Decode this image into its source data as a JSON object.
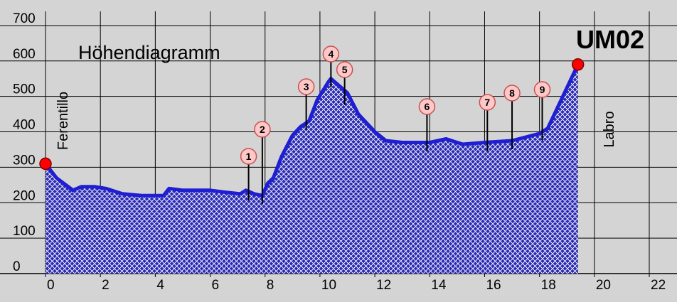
{
  "chart_data": {
    "type": "area",
    "title": "Höhendiagramm",
    "route_code": "UM02",
    "xlim": [
      0,
      22
    ],
    "ylim": [
      0,
      740
    ],
    "x_ticks": [
      0,
      2,
      4,
      6,
      8,
      10,
      12,
      14,
      16,
      18,
      20,
      22
    ],
    "y_ticks": [
      0,
      100,
      200,
      300,
      400,
      500,
      600,
      700
    ],
    "grid": true,
    "colors": {
      "background": "#d4d4d4",
      "line": "#1e1ed2",
      "fill": "#2a2ab4",
      "endpoint": "#ff0000",
      "marker_fill": "#ffc8c8",
      "marker_border": "#c85050"
    },
    "x": [
      0,
      0.4,
      1,
      1.3,
      1.8,
      2.2,
      2.8,
      3.5,
      4.3,
      4.5,
      5.0,
      6.0,
      6.5,
      7.1,
      7.3,
      7.6,
      7.9,
      8.1,
      8.3,
      8.6,
      9.0,
      9.3,
      9.6,
      9.9,
      10.3,
      10.4,
      11.0,
      11.4,
      12.0,
      12.4,
      13.0,
      14.0,
      14.6,
      15.2,
      16.0,
      17.0,
      18.0,
      18.3,
      19.4
    ],
    "elevation": [
      310,
      270,
      235,
      245,
      245,
      240,
      225,
      220,
      220,
      240,
      235,
      235,
      230,
      225,
      235,
      225,
      220,
      255,
      270,
      330,
      390,
      415,
      430,
      490,
      540,
      550,
      510,
      450,
      400,
      375,
      370,
      370,
      380,
      365,
      370,
      375,
      395,
      410,
      590
    ],
    "endpoints": [
      {
        "name": "Ferentillo",
        "x": 0,
        "elevation": 310
      },
      {
        "name": "Labro",
        "x": 19.4,
        "elevation": 590
      }
    ],
    "markers": [
      {
        "label": "1",
        "x": 7.4,
        "elevation": 230
      },
      {
        "label": "2",
        "x": 7.9,
        "elevation": 220
      },
      {
        "label": "3",
        "x": 9.5,
        "elevation": 430
      },
      {
        "label": "4",
        "x": 10.4,
        "elevation": 550
      },
      {
        "label": "5",
        "x": 10.9,
        "elevation": 500
      },
      {
        "label": "6",
        "x": 13.9,
        "elevation": 370
      },
      {
        "label": "7",
        "x": 16.1,
        "elevation": 370
      },
      {
        "label": "8",
        "x": 17.0,
        "elevation": 375
      },
      {
        "label": "9",
        "x": 18.1,
        "elevation": 400
      }
    ]
  }
}
